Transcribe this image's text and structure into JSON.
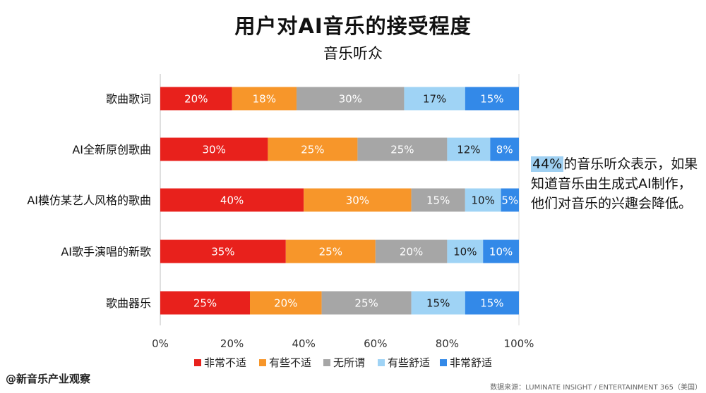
{
  "header": {
    "title": "用户对AI音乐的接受程度",
    "subtitle": "音乐听众"
  },
  "chart_data": {
    "type": "bar",
    "orientation": "horizontal",
    "stacked": true,
    "percent_stacked": true,
    "categories": [
      "歌曲歌词",
      "AI全新原创歌曲",
      "AI模仿某艺人风格的歌曲",
      "AI歌手演唱的新歌",
      "歌曲器乐"
    ],
    "series": [
      {
        "name": "非常不适",
        "color": "#e8211c",
        "values": [
          20,
          30,
          40,
          35,
          25
        ],
        "labels": [
          "20%",
          "30%",
          "40%",
          "35%",
          "25%"
        ]
      },
      {
        "name": "有些不适",
        "color": "#f7962a",
        "values": [
          18,
          25,
          30,
          25,
          20
        ],
        "labels": [
          "18%",
          "25%",
          "30%",
          "25%",
          "20%"
        ]
      },
      {
        "name": "无所谓",
        "color": "#a6a6a6",
        "values": [
          30,
          25,
          15,
          20,
          25
        ],
        "labels": [
          "30%",
          "25%",
          "15%",
          "20%",
          "25%"
        ]
      },
      {
        "name": "有些舒适",
        "color": "#9fd3f5",
        "values": [
          17,
          12,
          10,
          10,
          15
        ],
        "labels": [
          "17%",
          "12%",
          "10%",
          "10%",
          "15%"
        ]
      },
      {
        "name": "非常舒适",
        "color": "#3389e8",
        "values": [
          15,
          8,
          5,
          10,
          15
        ],
        "labels": [
          "15%",
          "8%",
          "5%",
          "10%",
          "15%"
        ]
      }
    ],
    "x_ticks": [
      "0%",
      "20%",
      "40%",
      "60%",
      "80%",
      "100%"
    ],
    "xlim": [
      0,
      100
    ],
    "grid": false,
    "legend_position": "bottom"
  },
  "annotation": {
    "highlight": "44%",
    "text": "的音乐听众表示，如果知道音乐由生成式AI制作，他们对音乐的兴趣会降低。"
  },
  "footer": {
    "credit": "@新音乐产业观察",
    "source": "数据来源：LUMINATE INSIGHT / ENTERTAINMENT 365（美国）"
  }
}
